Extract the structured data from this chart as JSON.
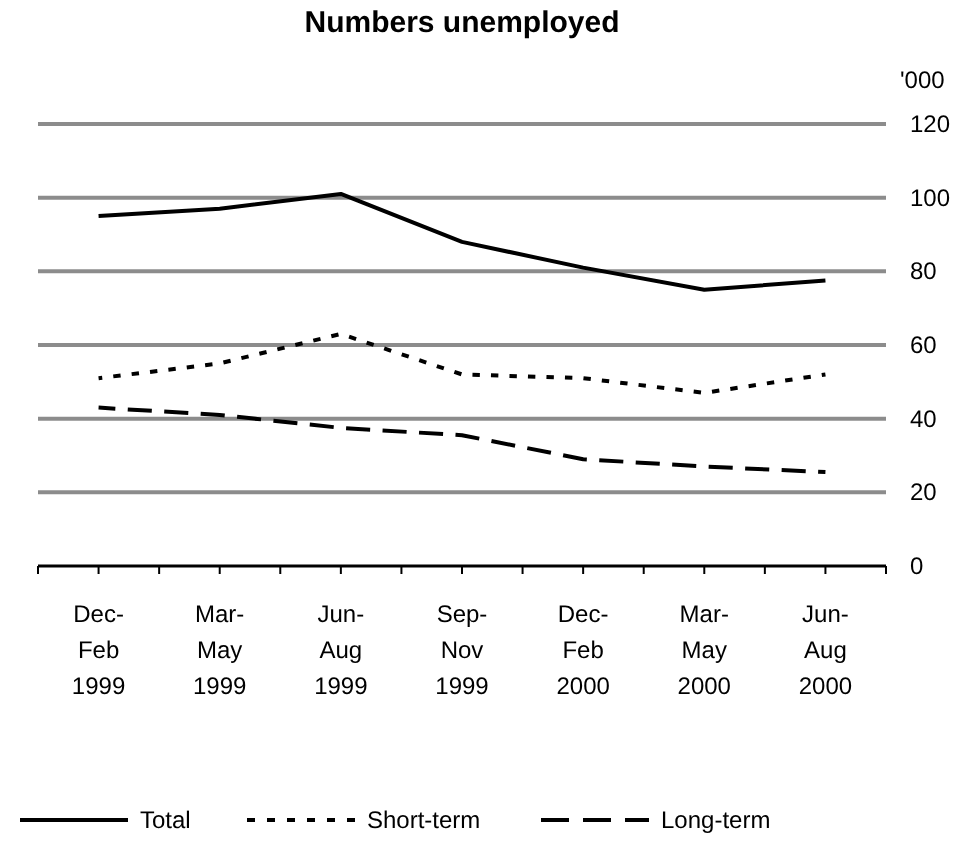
{
  "chart_data": {
    "type": "line",
    "title": "Numbers unemployed",
    "ylabel": "'000",
    "categories": [
      "Dec-\nFeb\n1999",
      "Mar-\nMay\n1999",
      "Jun-\nAug\n1999",
      "Sep-\nNov\n1999",
      "Dec-\nFeb\n2000",
      "Mar-\nMay\n2000",
      "Jun-\nAug\n2000"
    ],
    "series": [
      {
        "name": "Total",
        "color": "#000000",
        "line_style": "solid",
        "values": [
          95,
          97,
          101,
          88,
          81,
          75,
          77.5
        ]
      },
      {
        "name": "Short-term",
        "color": "#000000",
        "line_style": "dotted",
        "values": [
          51,
          55,
          63,
          52,
          51,
          47,
          52
        ]
      },
      {
        "name": "Long-term",
        "color": "#000000",
        "line_style": "dashed",
        "values": [
          43,
          41,
          37.5,
          35.5,
          29,
          27,
          25.5
        ]
      }
    ],
    "ylim": [
      0,
      120
    ],
    "yticks": [
      0,
      20,
      40,
      60,
      80,
      100,
      120
    ],
    "grid": "y",
    "legend": "bottom",
    "marker": "none"
  }
}
